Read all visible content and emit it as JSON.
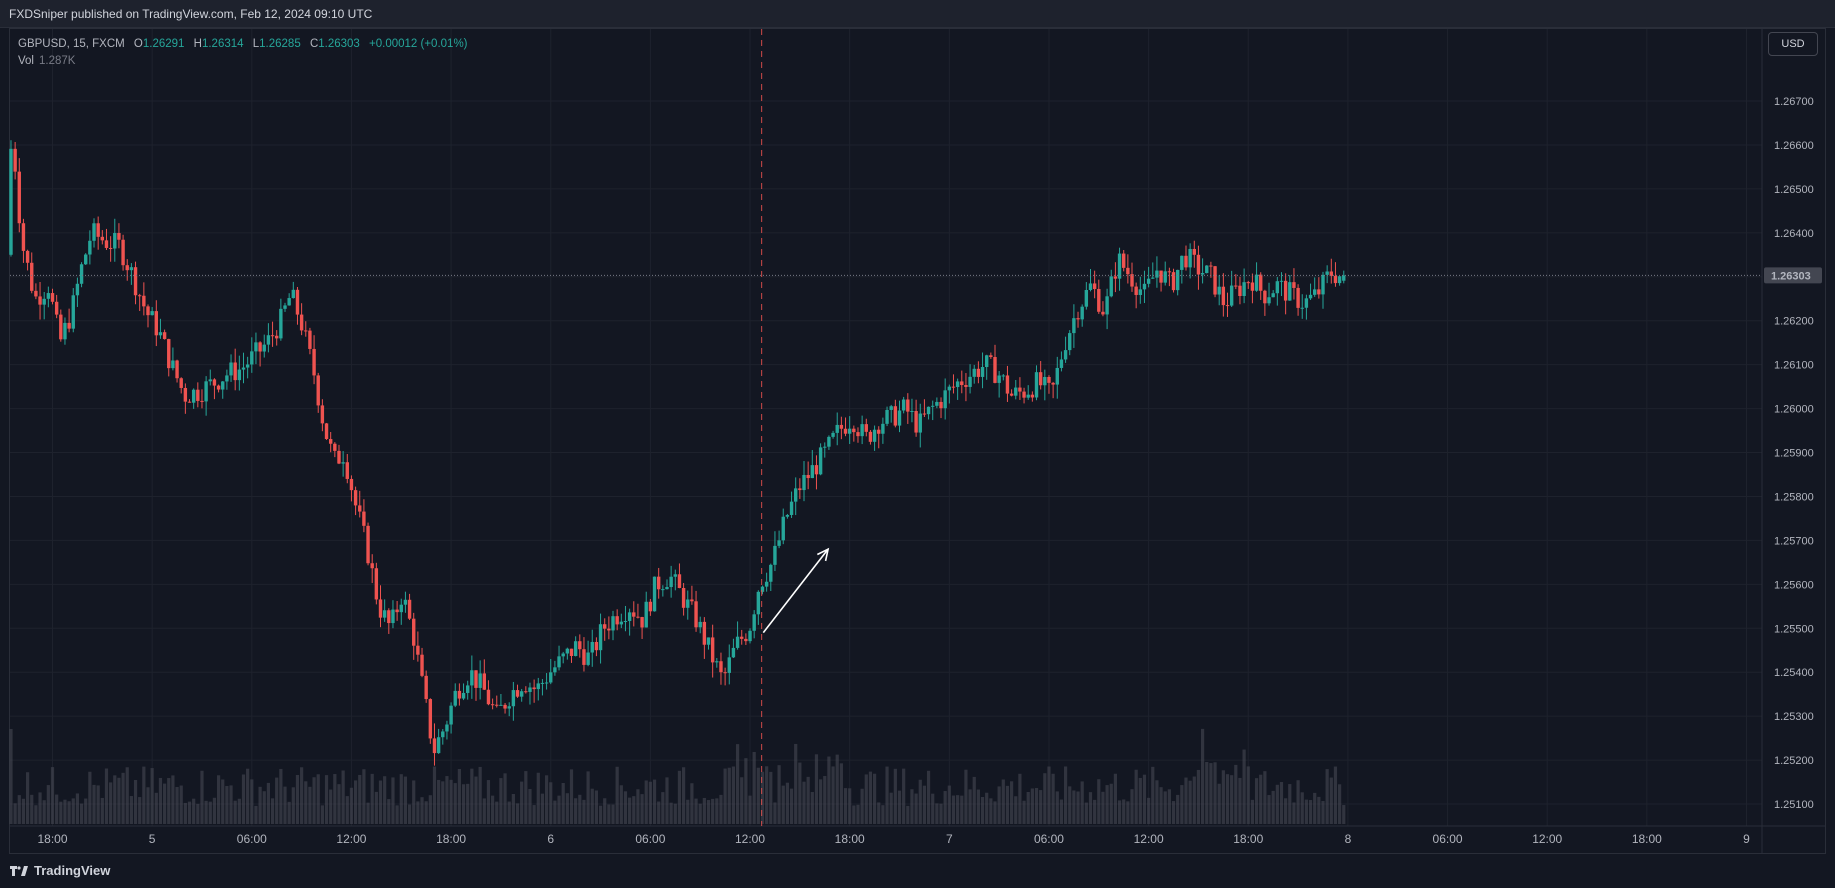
{
  "header": {
    "published": "FXDSniper published on TradingView.com, Feb 12, 2024 09:10 UTC"
  },
  "legend": {
    "symbol": "GBPUSD, 15, FXCM",
    "o_key": "O",
    "o": "1.26291",
    "h_key": "H",
    "h": "1.26314",
    "l_key": "L",
    "l": "1.26285",
    "c_key": "C",
    "c": "1.26303",
    "change": "+0.00012 (+0.01%)",
    "vol_label": "Vol",
    "vol_value": "1.287K"
  },
  "currency_button": "USD",
  "brand": "TradingView",
  "colors": {
    "up": "#26a69a",
    "down": "#ef5350",
    "background": "#131722",
    "grid": "#1e222d",
    "volume": "#4a4d57",
    "event_line": "#ef5350",
    "arrow": "#ffffff"
  },
  "chart_data": {
    "type": "candlestick",
    "symbol": "GBPUSD",
    "interval": "15",
    "yrange": [
      1.2505,
      1.268
    ],
    "y_ticks": [
      "1.26700",
      "1.26600",
      "1.26500",
      "1.26400",
      "1.26300",
      "1.26200",
      "1.26100",
      "1.26000",
      "1.25900",
      "1.25800",
      "1.25700",
      "1.25600",
      "1.25500",
      "1.25400",
      "1.25300",
      "1.25200",
      "1.25100"
    ],
    "x_ticks": [
      {
        "label": "18:00",
        "hours": 0
      },
      {
        "label": "5",
        "hours": 6
      },
      {
        "label": "06:00",
        "hours": 12
      },
      {
        "label": "12:00",
        "hours": 18
      },
      {
        "label": "18:00",
        "hours": 24
      },
      {
        "label": "6",
        "hours": 30
      },
      {
        "label": "06:00",
        "hours": 36
      },
      {
        "label": "12:00",
        "hours": 42
      },
      {
        "label": "18:00",
        "hours": 48
      },
      {
        "label": "7",
        "hours": 54
      },
      {
        "label": "06:00",
        "hours": 60
      },
      {
        "label": "12:00",
        "hours": 66
      },
      {
        "label": "18:00",
        "hours": 72
      },
      {
        "label": "8",
        "hours": 78
      },
      {
        "label": "06:00",
        "hours": 84
      },
      {
        "label": "12:00",
        "hours": 90
      },
      {
        "label": "18:00",
        "hours": 96
      },
      {
        "label": "9",
        "hours": 102
      }
    ],
    "last_price": "1.26303",
    "last_price_value": 1.26303,
    "event_line_hours": 42.7,
    "arrow": {
      "from": {
        "hours": 42.8,
        "price": 1.2549
      },
      "to": {
        "hours": 46.7,
        "price": 1.2568
      }
    },
    "path": [
      {
        "h": -2.5,
        "p": 1.2635
      },
      {
        "h": -2.2,
        "p": 1.2664
      },
      {
        "h": -1.6,
        "p": 1.2638
      },
      {
        "h": -0.8,
        "p": 1.2625
      },
      {
        "h": 0,
        "p": 1.2628
      },
      {
        "h": 0.7,
        "p": 1.2615
      },
      {
        "h": 1.4,
        "p": 1.2622
      },
      {
        "h": 2.0,
        "p": 1.2632
      },
      {
        "h": 2.6,
        "p": 1.264
      },
      {
        "h": 3.5,
        "p": 1.2638
      },
      {
        "h": 4.3,
        "p": 1.2637
      },
      {
        "h": 5.1,
        "p": 1.263
      },
      {
        "h": 5.9,
        "p": 1.2622
      },
      {
        "h": 6.6,
        "p": 1.2618
      },
      {
        "h": 7.4,
        "p": 1.261
      },
      {
        "h": 8.2,
        "p": 1.2603
      },
      {
        "h": 9.1,
        "p": 1.2604
      },
      {
        "h": 10.0,
        "p": 1.2606
      },
      {
        "h": 10.8,
        "p": 1.2608
      },
      {
        "h": 11.6,
        "p": 1.2609
      },
      {
        "h": 12.4,
        "p": 1.2612
      },
      {
        "h": 13.2,
        "p": 1.2615
      },
      {
        "h": 14.0,
        "p": 1.262
      },
      {
        "h": 14.6,
        "p": 1.2626
      },
      {
        "h": 15.2,
        "p": 1.262
      },
      {
        "h": 16.0,
        "p": 1.2608
      },
      {
        "h": 16.6,
        "p": 1.2596
      },
      {
        "h": 17.2,
        "p": 1.2588
      },
      {
        "h": 17.8,
        "p": 1.259
      },
      {
        "h": 18.5,
        "p": 1.2578
      },
      {
        "h": 19.2,
        "p": 1.2568
      },
      {
        "h": 19.9,
        "p": 1.2555
      },
      {
        "h": 20.6,
        "p": 1.255
      },
      {
        "h": 21.3,
        "p": 1.2558
      },
      {
        "h": 22.0,
        "p": 1.2548
      },
      {
        "h": 22.6,
        "p": 1.2535
      },
      {
        "h": 23.2,
        "p": 1.2522
      },
      {
        "h": 23.9,
        "p": 1.2528
      },
      {
        "h": 24.6,
        "p": 1.2536
      },
      {
        "h": 25.4,
        "p": 1.254
      },
      {
        "h": 26.2,
        "p": 1.2536
      },
      {
        "h": 27.0,
        "p": 1.253
      },
      {
        "h": 27.8,
        "p": 1.2535
      },
      {
        "h": 28.6,
        "p": 1.2538
      },
      {
        "h": 29.4,
        "p": 1.2536
      },
      {
        "h": 30.2,
        "p": 1.254
      },
      {
        "h": 31.0,
        "p": 1.2543
      },
      {
        "h": 31.8,
        "p": 1.2546
      },
      {
        "h": 32.6,
        "p": 1.2543
      },
      {
        "h": 33.4,
        "p": 1.255
      },
      {
        "h": 34.2,
        "p": 1.2553
      },
      {
        "h": 35.0,
        "p": 1.2555
      },
      {
        "h": 35.8,
        "p": 1.2552
      },
      {
        "h": 36.6,
        "p": 1.256
      },
      {
        "h": 37.4,
        "p": 1.2562
      },
      {
        "h": 38.2,
        "p": 1.2557
      },
      {
        "h": 39.0,
        "p": 1.2552
      },
      {
        "h": 39.8,
        "p": 1.2545
      },
      {
        "h": 40.6,
        "p": 1.2538
      },
      {
        "h": 41.4,
        "p": 1.2546
      },
      {
        "h": 42.2,
        "p": 1.255
      },
      {
        "h": 42.8,
        "p": 1.256
      },
      {
        "h": 43.6,
        "p": 1.2565
      },
      {
        "h": 44.4,
        "p": 1.2575
      },
      {
        "h": 45.2,
        "p": 1.2582
      },
      {
        "h": 46.0,
        "p": 1.2586
      },
      {
        "h": 46.8,
        "p": 1.259
      },
      {
        "h": 47.6,
        "p": 1.2595
      },
      {
        "h": 48.4,
        "p": 1.2598
      },
      {
        "h": 49.2,
        "p": 1.2593
      },
      {
        "h": 50.0,
        "p": 1.2597
      },
      {
        "h": 50.8,
        "p": 1.2598
      },
      {
        "h": 51.6,
        "p": 1.26
      },
      {
        "h": 52.4,
        "p": 1.2596
      },
      {
        "h": 53.2,
        "p": 1.26
      },
      {
        "h": 54.0,
        "p": 1.2603
      },
      {
        "h": 54.8,
        "p": 1.2606
      },
      {
        "h": 55.6,
        "p": 1.2608
      },
      {
        "h": 56.4,
        "p": 1.261
      },
      {
        "h": 57.2,
        "p": 1.2608
      },
      {
        "h": 58.0,
        "p": 1.2603
      },
      {
        "h": 58.8,
        "p": 1.2604
      },
      {
        "h": 59.6,
        "p": 1.2606
      },
      {
        "h": 60.4,
        "p": 1.2603
      },
      {
        "h": 61.2,
        "p": 1.2615
      },
      {
        "h": 62.0,
        "p": 1.2623
      },
      {
        "h": 62.8,
        "p": 1.2628
      },
      {
        "h": 63.6,
        "p": 1.2622
      },
      {
        "h": 64.4,
        "p": 1.2634
      },
      {
        "h": 65.2,
        "p": 1.263
      },
      {
        "h": 66.0,
        "p": 1.2626
      },
      {
        "h": 66.8,
        "p": 1.2632
      },
      {
        "h": 67.6,
        "p": 1.2628
      },
      {
        "h": 68.4,
        "p": 1.2635
      },
      {
        "h": 69.2,
        "p": 1.2632
      },
      {
        "h": 70.0,
        "p": 1.263
      },
      {
        "h": 70.8,
        "p": 1.2624
      },
      {
        "h": 71.6,
        "p": 1.2627
      },
      {
        "h": 72.4,
        "p": 1.263
      },
      {
        "h": 73.2,
        "p": 1.2626
      },
      {
        "h": 74.0,
        "p": 1.2628
      },
      {
        "h": 74.8,
        "p": 1.2626
      },
      {
        "h": 75.6,
        "p": 1.2624
      },
      {
        "h": 76.4,
        "p": 1.2626
      },
      {
        "h": 77.2,
        "p": 1.2631
      },
      {
        "h": 77.9,
        "p": 1.263
      }
    ]
  }
}
